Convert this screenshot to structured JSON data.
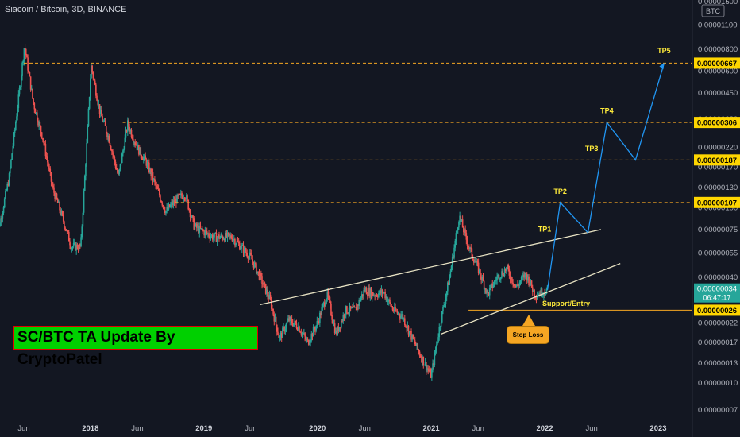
{
  "chart_data": {
    "type": "line",
    "symbol_label": "Siacoin / Bitcoin, 3D, BINANCE",
    "currency_label": "BTC",
    "title": "SC/BTC TA Update By CryptoPatel",
    "x_ticks": [
      "Jun",
      "2018",
      "Jun",
      "2019",
      "Jun",
      "2020",
      "Jun",
      "2021",
      "Jun",
      "2022",
      "Jun",
      "2023"
    ],
    "y_ticks": [
      "0.00001500",
      "0.00001100",
      "0.00000800",
      "0.00000600",
      "0.00000450",
      "0.00000320",
      "0.00000220",
      "0.00000170",
      "0.00000130",
      "0.00000100",
      "0.00000075",
      "0.00000055",
      "0.00000040",
      "0.00000030",
      "0.00000022",
      "0.00000017",
      "0.00000013",
      "0.00000010",
      "0.00000007"
    ],
    "log_scale": true,
    "series": [
      {
        "values": [
          [
            "2017-03-01",
            6e-07
          ],
          [
            "2017-04-15",
            1.5e-06
          ],
          [
            "2017-05-20",
            5e-06
          ],
          [
            "2017-06-03",
            8.5e-06
          ],
          [
            "2017-07-01",
            4e-06
          ],
          [
            "2017-08-01",
            2.5e-06
          ],
          [
            "2017-09-01",
            1.3e-06
          ],
          [
            "2017-10-01",
            9e-07
          ],
          [
            "2017-11-01",
            6e-07
          ],
          [
            "2017-12-01",
            6e-07
          ],
          [
            "2017-12-24",
            3e-06
          ],
          [
            "2018-01-03",
            6.5e-06
          ],
          [
            "2018-02-01",
            3.5e-06
          ],
          [
            "2018-03-01",
            2.5e-06
          ],
          [
            "2018-04-01",
            1.5e-06
          ],
          [
            "2018-05-01",
            3e-06
          ],
          [
            "2018-06-01",
            2.2e-06
          ],
          [
            "2018-07-01",
            1.8e-06
          ],
          [
            "2018-08-01",
            1.3e-06
          ],
          [
            "2018-09-01",
            9.5e-07
          ],
          [
            "2018-10-01",
            1.1e-06
          ],
          [
            "2018-11-01",
            1.2e-06
          ],
          [
            "2018-12-01",
            7.8e-07
          ],
          [
            "2019-02-01",
            6.8e-07
          ],
          [
            "2019-04-01",
            6.8e-07
          ],
          [
            "2019-06-01",
            5.2e-07
          ],
          [
            "2019-07-01",
            4e-07
          ],
          [
            "2019-08-01",
            3e-07
          ],
          [
            "2019-09-01",
            1.8e-07
          ],
          [
            "2019-10-01",
            2.3e-07
          ],
          [
            "2019-11-01",
            2.1e-07
          ],
          [
            "2019-12-01",
            1.7e-07
          ],
          [
            "2020-01-01",
            2.2e-07
          ],
          [
            "2020-02-01",
            3.2e-07
          ],
          [
            "2020-03-01",
            1.9e-07
          ],
          [
            "2020-04-01",
            2.6e-07
          ],
          [
            "2020-05-01",
            2.6e-07
          ],
          [
            "2020-06-01",
            3.4e-07
          ],
          [
            "2020-07-01",
            3.2e-07
          ],
          [
            "2020-08-01",
            3.3e-07
          ],
          [
            "2020-09-01",
            2.6e-07
          ],
          [
            "2020-10-01",
            2.4e-07
          ],
          [
            "2020-11-01",
            1.8e-07
          ],
          [
            "2020-12-01",
            1.4e-07
          ],
          [
            "2021-01-01",
            1.1e-07
          ],
          [
            "2021-02-01",
            2.3e-07
          ],
          [
            "2021-03-01",
            4e-07
          ],
          [
            "2021-04-01",
            9e-07
          ],
          [
            "2021-05-01",
            6e-07
          ],
          [
            "2021-06-01",
            4.5e-07
          ],
          [
            "2021-07-01",
            3.2e-07
          ],
          [
            "2021-08-01",
            4e-07
          ],
          [
            "2021-09-01",
            4.5e-07
          ],
          [
            "2021-10-01",
            3.5e-07
          ],
          [
            "2021-11-01",
            4.2e-07
          ],
          [
            "2021-12-01",
            3.2e-07
          ],
          [
            "2022-01-10",
            3.4e-07
          ]
        ]
      }
    ],
    "levels": [
      {
        "label": "TP5",
        "value": "0.00000667"
      },
      {
        "label": "TP4",
        "value": "0.00000306"
      },
      {
        "label": "TP3",
        "value": "0.00000187"
      },
      {
        "label": "TP2",
        "value": "0.00000107"
      },
      {
        "label": "Support/Entry",
        "value": "0.00000026"
      }
    ],
    "current_price": "0.00000034",
    "countdown": "06:47:17",
    "annotations": [
      "TP1",
      "TP2",
      "TP3",
      "TP4",
      "TP5",
      "Support/Entry",
      "Stop Loss"
    ],
    "projection": [
      [
        "2022-01-10",
        3.4e-07
      ],
      [
        "2022-02-20",
        1.07e-06
      ],
      [
        "2022-05-20",
        7.2e-07
      ],
      [
        "2022-07-20",
        3.06e-06
      ],
      [
        "2022-10-20",
        1.87e-06
      ],
      [
        "2023-01-20",
        6.67e-06
      ]
    ],
    "trendlines": [
      {
        "name": "upper",
        "from": [
          "2019-07-01",
          2.8e-07
        ],
        "to": [
          "2022-07-01",
          7.5e-07
        ]
      },
      {
        "name": "lower",
        "from": [
          "2021-02-01",
          1.9e-07
        ],
        "to": [
          "2022-09-01",
          4.8e-07
        ]
      }
    ],
    "colors": {
      "background": "#131722",
      "up": "#26a69a",
      "down": "#ef5350",
      "level_line": "#f5a623",
      "level_label_bg": "#ffd600",
      "projection": "#2196f3",
      "trendline": "#e8e3c4",
      "current_bg": "#26a69a",
      "banner_bg": "#00d000"
    }
  }
}
